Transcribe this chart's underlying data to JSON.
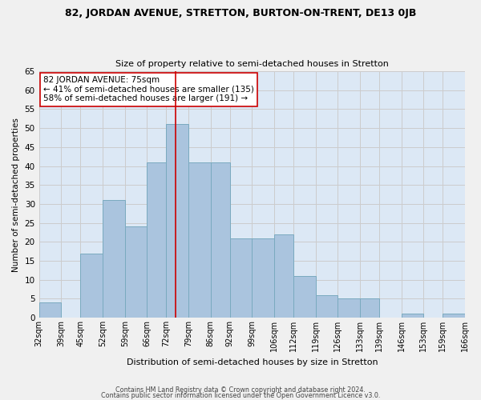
{
  "title1": "82, JORDAN AVENUE, STRETTON, BURTON-ON-TRENT, DE13 0JB",
  "title2": "Size of property relative to semi-detached houses in Stretton",
  "bar_heights": [
    4,
    0,
    17,
    31,
    24,
    41,
    51,
    41,
    41,
    21,
    21,
    22,
    11,
    6,
    5,
    5,
    0,
    1,
    0,
    1
  ],
  "bin_edges": [
    32,
    39,
    45,
    52,
    59,
    66,
    72,
    79,
    86,
    92,
    99,
    106,
    112,
    119,
    126,
    133,
    139,
    146,
    153,
    159,
    166
  ],
  "xlabels": [
    "32sqm",
    "39sqm",
    "45sqm",
    "52sqm",
    "59sqm",
    "66sqm",
    "72sqm",
    "79sqm",
    "86sqm",
    "92sqm",
    "99sqm",
    "106sqm",
    "112sqm",
    "119sqm",
    "126sqm",
    "133sqm",
    "139sqm",
    "146sqm",
    "153sqm",
    "159sqm",
    "166sqm"
  ],
  "bar_color": "#aac4de",
  "bar_edge_color": "#7aaabf",
  "grid_color": "#cccccc",
  "bg_color": "#dce8f5",
  "fig_color": "#f0f0f0",
  "vline_x": 75,
  "vline_color": "#cc0000",
  "annotation_title": "82 JORDAN AVENUE: 75sqm",
  "annotation_line1": "← 41% of semi-detached houses are smaller (135)",
  "annotation_line2": "58% of semi-detached houses are larger (191) →",
  "annotation_box_color": "#ffffff",
  "annotation_box_edge": "#cc0000",
  "ylabel": "Number of semi-detached properties",
  "xlabel": "Distribution of semi-detached houses by size in Stretton",
  "footer1": "Contains HM Land Registry data © Crown copyright and database right 2024.",
  "footer2": "Contains public sector information licensed under the Open Government Licence v3.0.",
  "ylim": [
    0,
    65
  ],
  "yticks": [
    0,
    5,
    10,
    15,
    20,
    25,
    30,
    35,
    40,
    45,
    50,
    55,
    60,
    65
  ]
}
